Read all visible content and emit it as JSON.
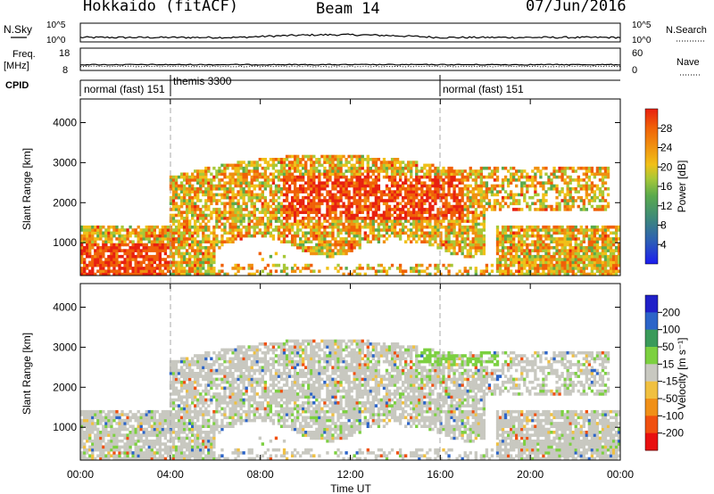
{
  "header": {
    "radar": "Hokkaido (fitACF)",
    "beam": "Beam 14",
    "date": "07/Jun/2016"
  },
  "top_panels": {
    "nsky_label": "N.Sky",
    "nsearch_label": "N.Search",
    "noise_ticks": [
      "10^5",
      "10^0"
    ],
    "freq_label_1": "Freq.",
    "freq_label_2": "[MHz]",
    "freq_ticks": [
      "18",
      "8"
    ],
    "nave_label": "Nave",
    "nave_ticks": [
      "60",
      "0"
    ],
    "cpid_label": "CPID",
    "cpid_segments": [
      {
        "label": "normal (fast) 151",
        "start_hour": 0
      },
      {
        "label": "themis 3300",
        "start_hour": 4
      },
      {
        "label": "normal (fast) 151",
        "start_hour": 16
      }
    ]
  },
  "chart_data": [
    {
      "type": "heatmap",
      "parameter": "Power",
      "ylabel": "Slant Range [km]",
      "ylim": [
        180,
        4590
      ],
      "yticks": [
        1000,
        2000,
        3000,
        4000
      ],
      "xlim": [
        0,
        24
      ],
      "colorbar": {
        "label": "Power [dB]",
        "range": [
          0,
          32
        ],
        "ticks": [
          "4",
          "8",
          "12",
          "16",
          "20",
          "24",
          "28"
        ],
        "colors": [
          "#1c1cf0",
          "#2c5cb8",
          "#3e8a78",
          "#5aaa4c",
          "#a8c838",
          "#f0c018",
          "#f09010",
          "#f06008",
          "#e82010"
        ]
      }
    },
    {
      "type": "heatmap",
      "parameter": "Velocity",
      "ylabel": "Slant Range [km]",
      "ylim": [
        180,
        4590
      ],
      "yticks": [
        1000,
        2000,
        3000,
        4000
      ],
      "xlim": [
        0,
        24
      ],
      "xticks": [
        "00:00",
        "04:00",
        "08:00",
        "12:00",
        "16:00",
        "20:00",
        "00:00"
      ],
      "xlabel": "Time UT",
      "colorbar": {
        "label": "Velocity [m s⁻¹]",
        "ticks": [
          "200",
          "100",
          "50",
          "15",
          "-15",
          "-50",
          "-100",
          "-200"
        ],
        "colors": [
          "#2020c8",
          "#2c64c8",
          "#3a9a5a",
          "#7cd040",
          "#c8c8c0",
          "#f0c040",
          "#f09018",
          "#f05010",
          "#e81010"
        ]
      }
    }
  ]
}
